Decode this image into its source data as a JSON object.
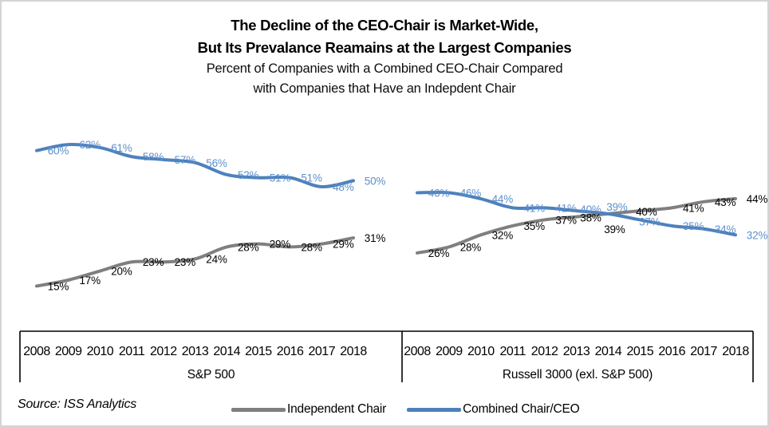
{
  "title": {
    "line1": "The Decline of the CEO-Chair is Market-Wide,",
    "line2": "But Its Prevalance Reamains at the Largest Companies",
    "subtitle_line1": "Percent of Companies with a Combined CEO-Chair Compared",
    "subtitle_line2": "with Companies that Have an Indepdent Chair"
  },
  "source_note": "Source: ISS Analytics",
  "legend": {
    "position": "bottom-center",
    "items": [
      {
        "label": "Independent Chair",
        "color": "#7F7F7F"
      },
      {
        "label": "Combined Chair/CEO",
        "color": "#4E81BC"
      }
    ]
  },
  "colors": {
    "independent_line": "#7F7F7F",
    "independent_label_text": "#000000",
    "combined_line": "#4E81BC",
    "combined_label_text": "#5C8FCC",
    "axis_line": "#000000",
    "frame_border": "#D4D4D4",
    "background": "#FFFFFF"
  },
  "chart_data": [
    {
      "type": "line",
      "group_label": "S&P 500",
      "categories": [
        "2008",
        "2009",
        "2010",
        "2011",
        "2012",
        "2013",
        "2014",
        "2015",
        "2016",
        "2017",
        "2018"
      ],
      "unit": "%",
      "ylim": [
        0,
        70
      ],
      "grid": false,
      "y_axis": "hidden",
      "data_labels": "every point, placed right of point",
      "series": [
        {
          "name": "Independent Chair",
          "values": [
            15,
            17,
            20,
            23,
            23,
            24,
            28,
            29,
            28,
            29,
            31
          ]
        },
        {
          "name": "Combined Chair/CEO",
          "values": [
            60,
            62,
            61,
            58,
            57,
            56,
            52,
            51,
            51,
            48,
            50
          ]
        }
      ]
    },
    {
      "type": "line",
      "group_label": "Russell 3000 (exl. S&P 500)",
      "categories": [
        "2008",
        "2009",
        "2010",
        "2011",
        "2012",
        "2013",
        "2014",
        "2015",
        "2016",
        "2017",
        "2018"
      ],
      "unit": "%",
      "ylim": [
        0,
        70
      ],
      "grid": false,
      "y_axis": "hidden",
      "data_labels": "every point, placed right of point",
      "series": [
        {
          "name": "Independent Chair",
          "values": [
            26,
            28,
            32,
            35,
            37,
            38,
            39,
            40,
            41,
            43,
            44
          ]
        },
        {
          "name": "Combined Chair/CEO",
          "values": [
            46,
            46,
            44,
            41,
            41,
            40,
            39,
            37,
            35,
            34,
            32
          ]
        }
      ]
    }
  ]
}
